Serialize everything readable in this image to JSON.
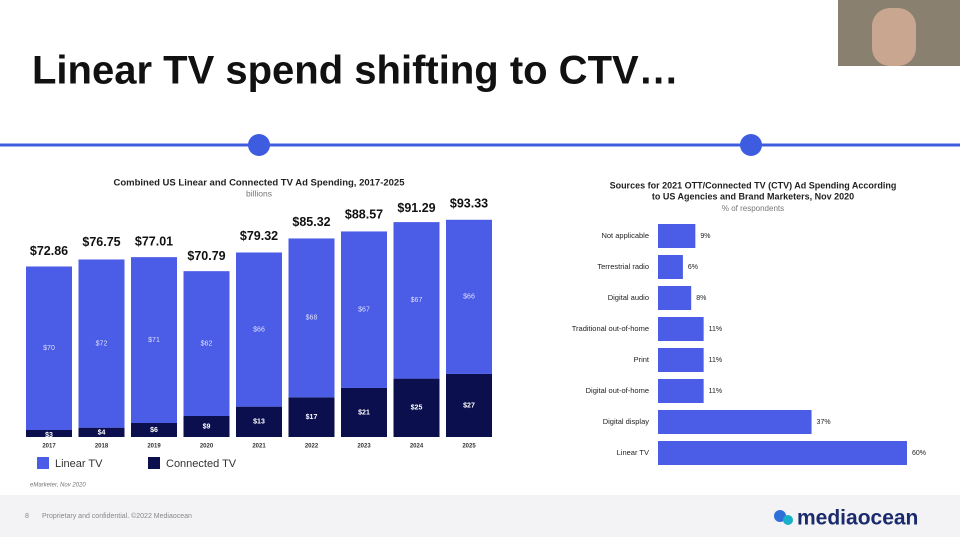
{
  "slide": {
    "title": "Linear TV spend shifting to CTV…",
    "page": "8",
    "footer": "Proprietary and confidential. ©2022 Mediaocean",
    "logo": "mediaocean"
  },
  "chart_data": [
    {
      "type": "stacked-bar",
      "title": "Combined US Linear and Connected TV Ad Spending, 2017-2025",
      "subtitle": "billions",
      "categories": [
        "2017",
        "2018",
        "2019",
        "2020",
        "2021",
        "2022",
        "2023",
        "2024",
        "2025"
      ],
      "series": [
        {
          "name": "Connected TV",
          "color": "#0c0f4d",
          "values": [
            3,
            4,
            6,
            9,
            13,
            17,
            21,
            25,
            27
          ],
          "value_labels": [
            "$3",
            "$4",
            "$6",
            "$9",
            "$13",
            "$17",
            "$21",
            "$25",
            "$27"
          ]
        },
        {
          "name": "Linear TV",
          "color": "#4b5ce6",
          "values": [
            70,
            72,
            71,
            62,
            66,
            68,
            67,
            67,
            66
          ],
          "value_labels": [
            "$70",
            "$72",
            "$71",
            "$62",
            "$66",
            "$68",
            "$67",
            "$67",
            "$66"
          ]
        }
      ],
      "totals": [
        72.86,
        76.75,
        77.01,
        70.79,
        79.32,
        85.32,
        88.57,
        91.29,
        93.33
      ],
      "total_labels": [
        "$72.86",
        "$76.75",
        "$77.01",
        "$70.79",
        "$79.32",
        "$85.32",
        "$88.57",
        "$91.29",
        "$93.33"
      ],
      "legend_order": [
        1,
        0
      ],
      "source": "eMarketer, Nov 2020"
    },
    {
      "type": "hbar",
      "title": [
        "Sources for 2021 OTT/Connected TV (CTV) Ad Spending According",
        "to US Agencies and Brand Marketers, Nov 2020"
      ],
      "subtitle": "% of respondents",
      "categories": [
        "Not applicable",
        "Terrestrial radio",
        "Digital audio",
        "Traditional out-of-home",
        "Print",
        "Digital out-of-home",
        "Digital display",
        "Linear TV"
      ],
      "values": [
        9,
        6,
        8,
        11,
        11,
        11,
        37,
        60
      ],
      "value_labels": [
        "9%",
        "6%",
        "8%",
        "11%",
        "11%",
        "11%",
        "37%",
        "60%"
      ],
      "color": "#4b5ce6"
    }
  ]
}
